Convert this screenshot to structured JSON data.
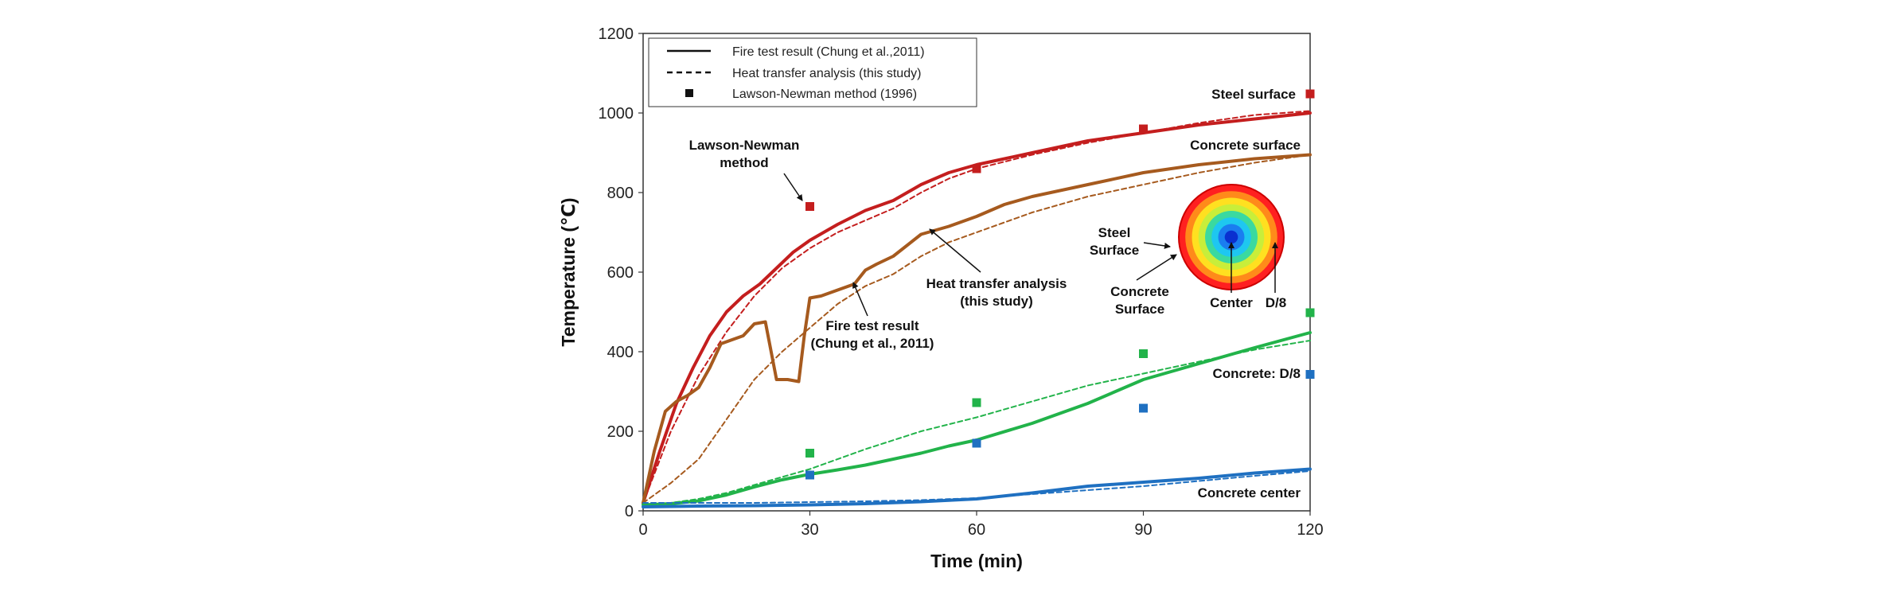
{
  "chart_data": {
    "type": "line",
    "title": "",
    "xlabel": "Time (min)",
    "ylabel": "Temperature (℃)",
    "xlim": [
      0,
      120
    ],
    "ylim": [
      0,
      1200
    ],
    "x_ticks": [
      "0",
      "30",
      "60",
      "90",
      "120"
    ],
    "y_ticks": [
      "0",
      "200",
      "400",
      "600",
      "800",
      "1000",
      "1200"
    ],
    "grid": false,
    "legend_position": "top-left",
    "legend": [
      {
        "label": "Fire test result (Chung et al.,2011)",
        "style": "solid"
      },
      {
        "label": "Heat transfer analysis (this study)",
        "style": "dashed"
      },
      {
        "label": "Lawson-Newman method (1996)",
        "style": "square-marker"
      }
    ],
    "series": [
      {
        "group": "Steel surface",
        "kind": "fire-test",
        "color": "#c41e1e",
        "x": [
          0,
          3,
          6,
          9,
          12,
          15,
          18,
          21,
          24,
          27,
          30,
          35,
          40,
          45,
          50,
          55,
          60,
          70,
          80,
          90,
          100,
          110,
          120
        ],
        "y": [
          20,
          150,
          270,
          360,
          440,
          500,
          540,
          570,
          610,
          650,
          680,
          720,
          755,
          780,
          820,
          850,
          870,
          900,
          930,
          950,
          970,
          985,
          1000
        ]
      },
      {
        "group": "Steel surface",
        "kind": "heat-transfer",
        "color": "#c41e1e",
        "x": [
          0,
          5,
          10,
          15,
          20,
          25,
          30,
          35,
          40,
          45,
          50,
          55,
          60,
          70,
          80,
          90,
          100,
          110,
          120
        ],
        "y": [
          20,
          200,
          340,
          450,
          540,
          610,
          660,
          700,
          730,
          760,
          800,
          835,
          860,
          895,
          925,
          950,
          975,
          995,
          1005
        ]
      },
      {
        "group": "Steel surface",
        "kind": "lawson-newman",
        "color": "#c41e1e",
        "x": [
          30,
          60,
          90,
          120
        ],
        "y": [
          765,
          860,
          960,
          1048
        ]
      },
      {
        "group": "Concrete surface",
        "kind": "fire-test",
        "color": "#a65a1e",
        "x": [
          0,
          2,
          4,
          6,
          8,
          10,
          12,
          14,
          16,
          18,
          20,
          22,
          24,
          26,
          28,
          29,
          30,
          32,
          35,
          38,
          40,
          42,
          45,
          50,
          55,
          60,
          65,
          70,
          80,
          90,
          100,
          110,
          120
        ],
        "y": [
          20,
          150,
          250,
          275,
          290,
          310,
          360,
          420,
          430,
          440,
          470,
          475,
          330,
          330,
          325,
          440,
          535,
          540,
          555,
          570,
          605,
          620,
          640,
          695,
          715,
          740,
          770,
          790,
          820,
          850,
          870,
          885,
          895
        ]
      },
      {
        "group": "Concrete surface",
        "kind": "heat-transfer",
        "color": "#a65a1e",
        "x": [
          0,
          5,
          10,
          15,
          20,
          25,
          30,
          35,
          40,
          45,
          50,
          55,
          60,
          70,
          80,
          90,
          100,
          110,
          120
        ],
        "y": [
          20,
          70,
          130,
          230,
          330,
          400,
          460,
          520,
          565,
          595,
          640,
          675,
          700,
          750,
          790,
          820,
          850,
          875,
          895
        ]
      },
      {
        "group": "Concrete: D/8",
        "kind": "fire-test",
        "color": "#22b34a",
        "x": [
          0,
          5,
          10,
          15,
          20,
          25,
          30,
          35,
          40,
          45,
          50,
          55,
          60,
          70,
          80,
          90,
          100,
          110,
          120
        ],
        "y": [
          15,
          18,
          25,
          40,
          60,
          78,
          92,
          103,
          115,
          130,
          145,
          163,
          178,
          220,
          270,
          330,
          370,
          410,
          448
        ]
      },
      {
        "group": "Concrete: D/8",
        "kind": "heat-transfer",
        "color": "#22b34a",
        "x": [
          0,
          5,
          10,
          15,
          20,
          25,
          30,
          40,
          50,
          60,
          70,
          80,
          90,
          100,
          110,
          120
        ],
        "y": [
          15,
          20,
          30,
          45,
          65,
          85,
          105,
          155,
          200,
          235,
          275,
          315,
          345,
          375,
          405,
          428
        ]
      },
      {
        "group": "Concrete: D/8",
        "kind": "lawson-newman",
        "color": "#22b34a",
        "x": [
          30,
          60,
          90,
          120
        ],
        "y": [
          145,
          272,
          395,
          498
        ]
      },
      {
        "group": "Concrete center",
        "kind": "fire-test",
        "color": "#1f70c1",
        "x": [
          0,
          10,
          20,
          30,
          40,
          50,
          60,
          70,
          80,
          90,
          100,
          110,
          120
        ],
        "y": [
          10,
          12,
          13,
          15,
          18,
          23,
          30,
          45,
          62,
          72,
          82,
          95,
          105
        ]
      },
      {
        "group": "Concrete center",
        "kind": "heat-transfer",
        "color": "#1f70c1",
        "x": [
          0,
          10,
          20,
          30,
          40,
          50,
          60,
          70,
          80,
          90,
          100,
          110,
          120
        ],
        "y": [
          20,
          20,
          20,
          22,
          24,
          27,
          32,
          42,
          52,
          62,
          75,
          88,
          100
        ]
      },
      {
        "group": "Concrete center",
        "kind": "lawson-newman",
        "color": "#1f70c1",
        "x": [
          30,
          60,
          90,
          120
        ],
        "y": [
          90,
          170,
          258,
          343
        ]
      }
    ],
    "annotations": {
      "steel_surface": "Steel surface",
      "concrete_surface": "Concrete surface",
      "concrete_d8": "Concrete: D/8",
      "concrete_center": "Concrete center",
      "lawson_line1": "Lawson-Newman",
      "lawson_line2": "method",
      "hta_line1": "Heat transfer analysis",
      "hta_line2": "(this study)",
      "fire_line1": "Fire test result",
      "fire_line2": "(Chung et al., 2011)"
    },
    "inset": {
      "steel_label_1": "Steel",
      "steel_label_2": "Surface",
      "concrete_label_1": "Concrete",
      "concrete_label_2": "Surface",
      "center_label": "Center",
      "d8_label": "D/8",
      "rings": [
        "#ff2020",
        "#ff8a1a",
        "#ffe020",
        "#c8ee3a",
        "#3ad9a0",
        "#1ec7f0",
        "#1a7df0",
        "#0a30d0"
      ]
    }
  }
}
